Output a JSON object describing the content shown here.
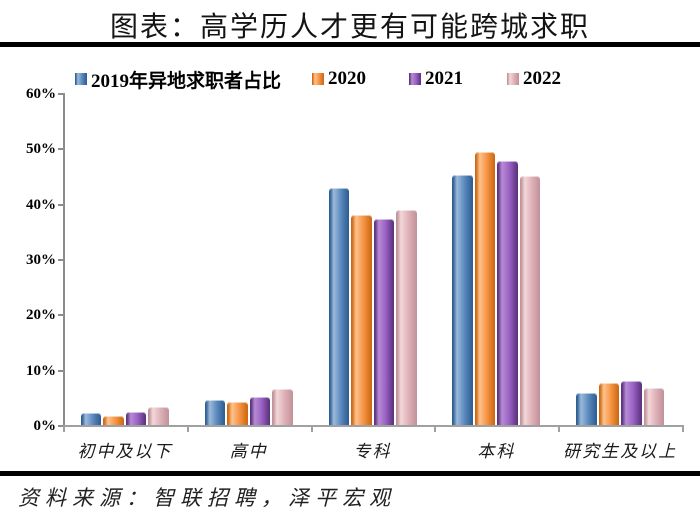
{
  "title": "图表：高学历人才更有可能跨城求职",
  "source": "资料来源：智联招聘，泽平宏观",
  "legend": [
    {
      "label": "2019年异地求职者占比",
      "color": "#5d8bbf",
      "color_dark": "#2f5f94",
      "color_light": "#9cbada"
    },
    {
      "label": "2020",
      "color": "#f79646",
      "color_dark": "#cf6a14",
      "color_light": "#fdc28e"
    },
    {
      "label": "2021",
      "color": "#9a62c4",
      "color_dark": "#5e3480",
      "color_light": "#b78bd5"
    },
    {
      "label": "2022",
      "color": "#e0b2b8",
      "color_dark": "#c2939c",
      "color_light": "#f2d8da"
    }
  ],
  "chart_data": {
    "type": "bar",
    "title": "图表：高学历人才更有可能跨城求职",
    "categories": [
      "初中及以下",
      "高中",
      "专科",
      "本科",
      "研究生及以上"
    ],
    "series": [
      {
        "name": "2019年异地求职者占比",
        "values": [
          2.1,
          4.5,
          42.8,
          45.1,
          5.8
        ]
      },
      {
        "name": "2020",
        "values": [
          1.6,
          4.1,
          38.0,
          49.3,
          7.6
        ]
      },
      {
        "name": "2021",
        "values": [
          2.3,
          5.0,
          37.2,
          47.8,
          8.0
        ]
      },
      {
        "name": "2022",
        "values": [
          3.2,
          6.5,
          38.9,
          45.0,
          6.6
        ]
      }
    ],
    "xlabel": "",
    "ylabel": "",
    "ylim": [
      0,
      60
    ],
    "ytick_labels": [
      "0%",
      "10%",
      "20%",
      "30%",
      "40%",
      "50%",
      "60%"
    ],
    "grid": false,
    "legend_position": "top"
  },
  "colors": {
    "axis": "#8c8c8c",
    "baseline": "#a0a0a0",
    "title_text": "#141414",
    "rule": "#000000",
    "background": "#ffffff"
  }
}
